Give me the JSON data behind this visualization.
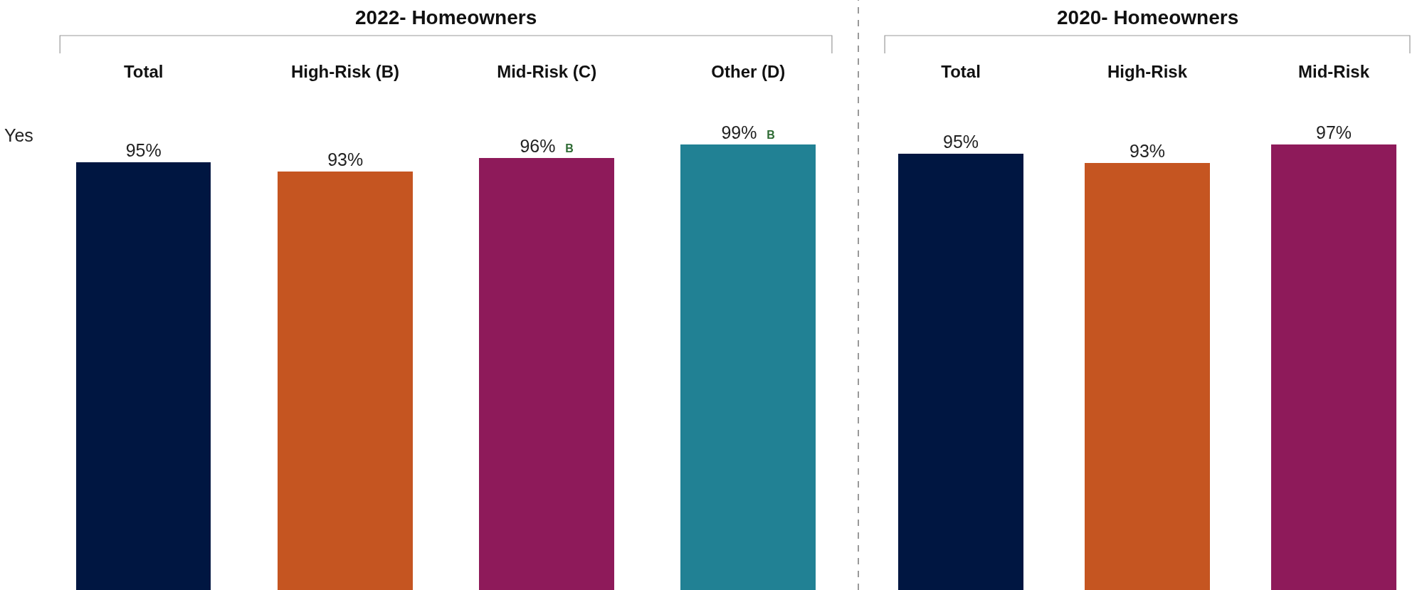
{
  "chart_data": [
    {
      "type": "bar",
      "title": "2022- Homeowners",
      "ylabel": "Yes",
      "categories": [
        "Total",
        "High-Risk (B)",
        "Mid-Risk (C)",
        "Other (D)"
      ],
      "values": [
        95,
        93,
        96,
        99
      ],
      "value_labels": [
        "95%",
        "93%",
        "96% B",
        "99% B"
      ],
      "colors": [
        "#001641",
        "#c55521",
        "#8e1a5a",
        "#218194"
      ],
      "tick_labels": "x"
    },
    {
      "type": "bar",
      "title": "2020- Homeowners",
      "categories": [
        "Total",
        "High-Risk",
        "Mid-Risk"
      ],
      "values": [
        95,
        93,
        97
      ],
      "value_labels": [
        "95%",
        "93%",
        "97%"
      ],
      "colors": [
        "#001641",
        "#c55521",
        "#8e1a5a"
      ],
      "tick_labels": "x"
    }
  ]
}
